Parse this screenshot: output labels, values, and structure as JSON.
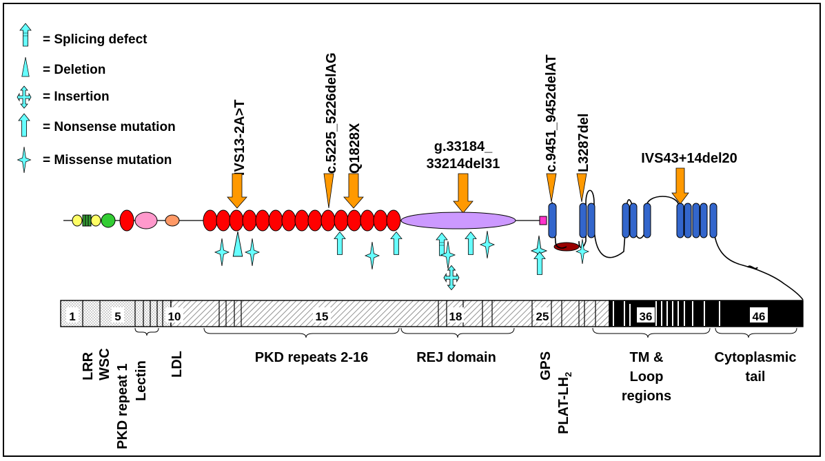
{
  "legend": [
    {
      "symbol": "splicing-defect",
      "label": "= Splicing defect"
    },
    {
      "symbol": "deletion",
      "label": "= Deletion"
    },
    {
      "symbol": "insertion",
      "label": "= Insertion"
    },
    {
      "symbol": "nonsense-mutation",
      "label": "= Nonsense mutation"
    },
    {
      "symbol": "missense-mutation",
      "label": "= Missense mutation"
    }
  ],
  "mutations": [
    {
      "label": "IVS13-2A>T"
    },
    {
      "label": "c.5225_5226delAG"
    },
    {
      "label": "Q1828X"
    },
    {
      "label_line1": "g.33184_",
      "label_line2": "33214del31"
    },
    {
      "label": "c.9451_9452delAT"
    },
    {
      "label": "L3287del"
    },
    {
      "label": "IVS43+14del20"
    }
  ],
  "exon_numbers": [
    "1",
    "5",
    "10",
    "15",
    "18",
    "25",
    "36",
    "46"
  ],
  "domains": {
    "lrr": "LRR",
    "wsc": "WSC",
    "pkd_repeat_1": "PKD repeat 1",
    "lectin": "Lectin",
    "ldl": "LDL",
    "pkd_repeats": "PKD repeats 2-16",
    "rej": "REJ domain",
    "gps": "GPS",
    "plat_prefix": "PLAT-LH",
    "plat_sub": "2",
    "tm_line1": "TM &",
    "tm_line2": "Loop",
    "tm_line3": "regions",
    "cyto_line1": "Cytoplasmic",
    "cyto_line2": "tail"
  },
  "colors": {
    "cyan": "#66FFFF",
    "orange": "#FF9900",
    "pkd_red": "#FF0000",
    "rej_purple": "#CC99FF",
    "tm_blue": "#3366CC",
    "wsc_green": "#33CC33",
    "lrr_yellow": "#FFFF66",
    "lectin_pink": "#FF99CC",
    "ldl_orange": "#FF9966",
    "gps_magenta": "#FF33CC",
    "plat_darkred": "#990000"
  }
}
